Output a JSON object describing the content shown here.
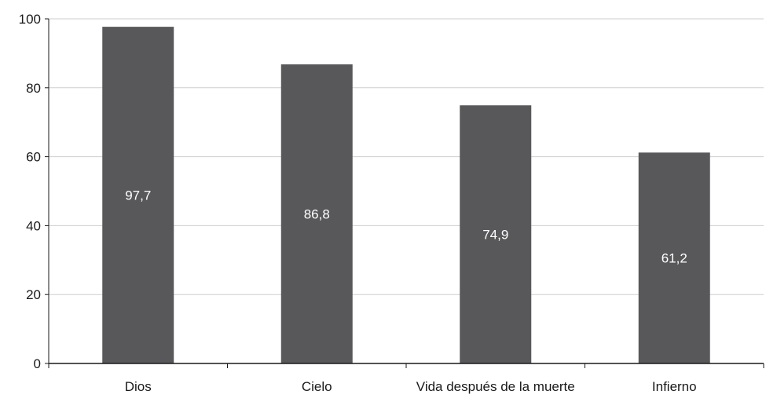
{
  "chart_data": {
    "type": "bar",
    "title": "",
    "xlabel": "",
    "ylabel": "",
    "categories": [
      "Dios",
      "Cielo",
      "Vida después de la muerte",
      "Infierno"
    ],
    "values": [
      97.7,
      86.8,
      74.9,
      61.2
    ],
    "value_labels": [
      "97,7",
      "86,8",
      "74,9",
      "61,2"
    ],
    "ylim": [
      0,
      100
    ],
    "yticks": [
      0,
      20,
      40,
      60,
      80,
      100
    ],
    "ytick_labels": [
      "0",
      "20",
      "40",
      "60",
      "80",
      "100"
    ],
    "grid": true,
    "legend": "none",
    "colors": {
      "bar": "#58585a",
      "grid": "#cfcfcf",
      "axis": "#1a1a1a",
      "data_label": "#ffffff"
    }
  }
}
